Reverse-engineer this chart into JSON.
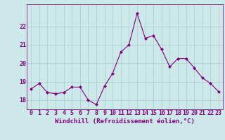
{
  "x": [
    0,
    1,
    2,
    3,
    4,
    5,
    6,
    7,
    8,
    9,
    10,
    11,
    12,
    13,
    14,
    15,
    16,
    17,
    18,
    19,
    20,
    21,
    22,
    23
  ],
  "y": [
    18.6,
    18.9,
    18.4,
    18.35,
    18.4,
    18.7,
    18.7,
    18.0,
    17.75,
    18.75,
    19.45,
    20.6,
    21.0,
    22.7,
    21.35,
    21.5,
    20.75,
    19.8,
    20.25,
    20.25,
    19.75,
    19.2,
    18.9,
    18.45
  ],
  "line_color": "#800080",
  "marker": "D",
  "marker_size": 2,
  "bg_color": "#cce8e8",
  "grid_color": "#aacccc",
  "xlabel": "Windchill (Refroidissement éolien,°C)",
  "xlabel_fontsize": 6.5,
  "tick_fontsize": 6,
  "ylim": [
    17.5,
    23.2
  ],
  "yticks": [
    18,
    19,
    20,
    21,
    22
  ],
  "xlim": [
    -0.5,
    23.5
  ],
  "xticks": [
    0,
    1,
    2,
    3,
    4,
    5,
    6,
    7,
    8,
    9,
    10,
    11,
    12,
    13,
    14,
    15,
    16,
    17,
    18,
    19,
    20,
    21,
    22,
    23
  ]
}
